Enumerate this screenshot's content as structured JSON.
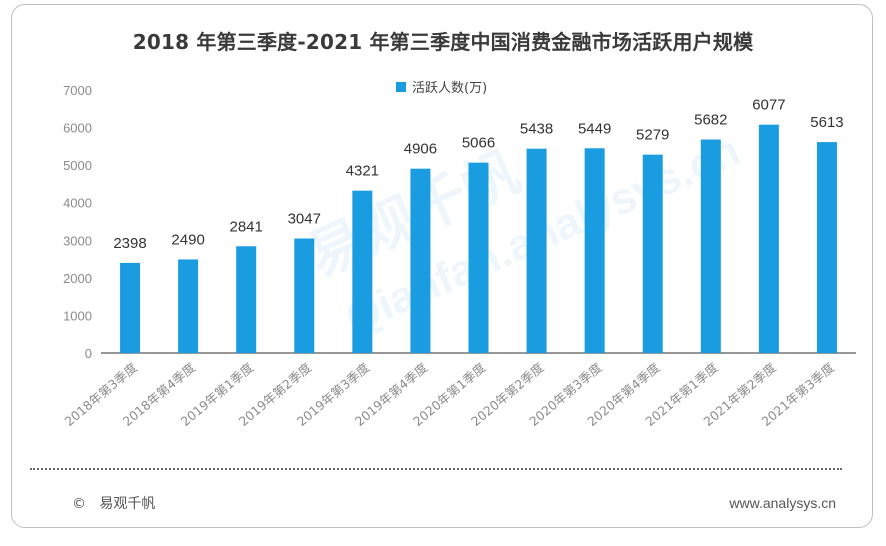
{
  "chart_data": {
    "type": "bar",
    "title": "2018 年第三季度-2021 年第三季度中国消费金融市场活跃用户规模",
    "categories": [
      "2018年第3季度",
      "2018年第4季度",
      "2019年第1季度",
      "2019年第2季度",
      "2019年第3季度",
      "2019年第4季度",
      "2020年第1季度",
      "2020年第2季度",
      "2020年第3季度",
      "2020年第4季度",
      "2021年第1季度",
      "2021年第2季度",
      "2021年第3季度"
    ],
    "series": [
      {
        "name": "活跃人数(万)",
        "values": [
          2398,
          2490,
          2841,
          3047,
          4321,
          4906,
          5066,
          5438,
          5449,
          5279,
          5682,
          6077,
          5613
        ],
        "color": "#1a9ce0"
      }
    ],
    "yticks": [
      0,
      1000,
      2000,
      3000,
      4000,
      5000,
      6000,
      7000
    ],
    "ylim": [
      0,
      7000
    ],
    "legend_position": "top-center",
    "grid": false
  },
  "footer": {
    "copyright_symbol": "©",
    "brand": "易观千帆",
    "website": "www.analysys.cn"
  },
  "watermark": {
    "text_cn": "易观千帆",
    "text_en": "Qianfan.analysys.cn"
  },
  "colors": {
    "bar": "#1a9ce0",
    "axis": "#595959",
    "tick_label": "#8c8c8c",
    "value_label": "#333333"
  }
}
